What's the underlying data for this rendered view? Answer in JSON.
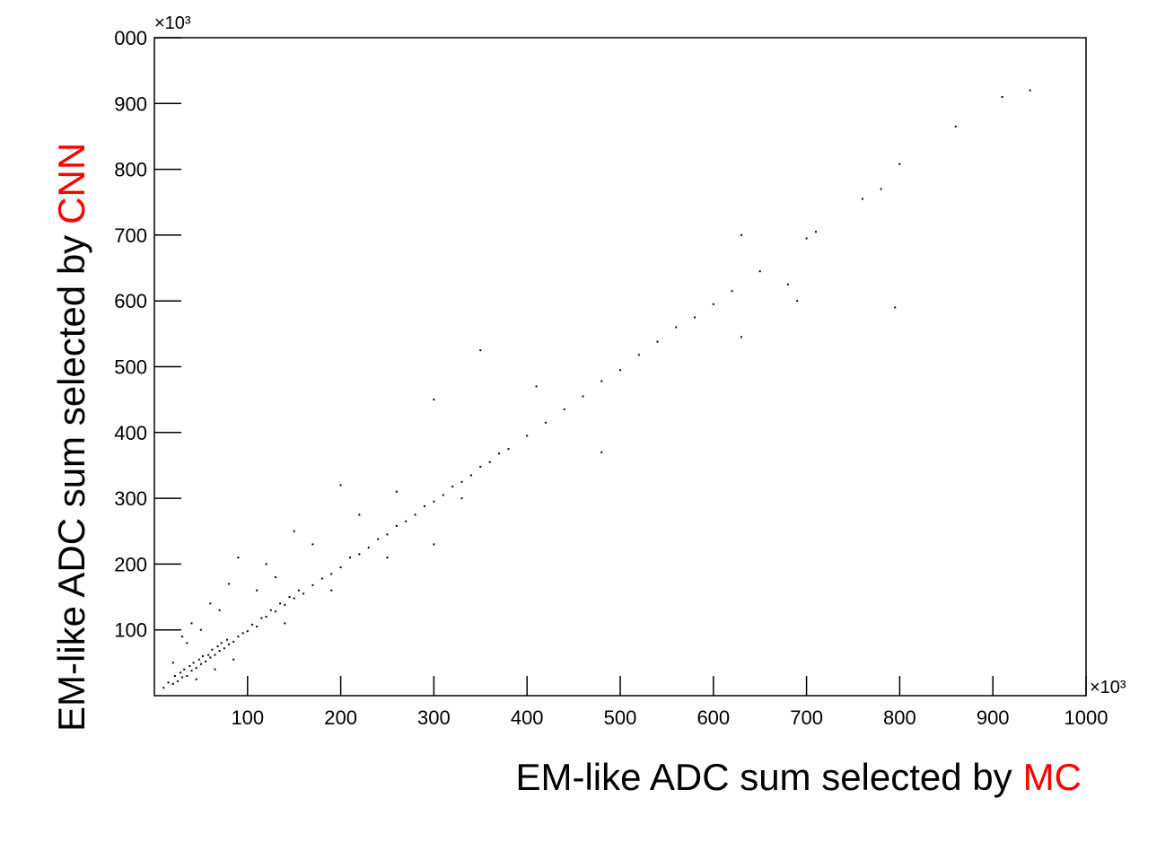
{
  "chart_data": {
    "type": "scatter",
    "x_label": "EM-like ADC sum selected by",
    "x_label_highlight": "MC",
    "y_label": "EM-like ADC sum selected by",
    "y_label_highlight": "CNN",
    "highlight_color": "#ff0000",
    "x_multiplier": "×10³",
    "y_multiplier": "×10³",
    "xlim": [
      0,
      1000
    ],
    "ylim": [
      0,
      1000
    ],
    "xticks": [
      100,
      200,
      300,
      400,
      500,
      600,
      700,
      800,
      900,
      1000
    ],
    "yticks": [
      100,
      200,
      300,
      400,
      500,
      600,
      700,
      800,
      900,
      {
        "value": 1000,
        "label": "000"
      }
    ],
    "grid": false,
    "series": [
      {
        "color": "#000000",
        "x": [
          10,
          15,
          20,
          22,
          25,
          28,
          30,
          32,
          35,
          38,
          40,
          42,
          45,
          48,
          50,
          52,
          55,
          58,
          60,
          62,
          65,
          68,
          70,
          72,
          75,
          78,
          80,
          85,
          90,
          95,
          100,
          105,
          110,
          115,
          120,
          125,
          130,
          135,
          140,
          145,
          150,
          155,
          160,
          170,
          180,
          190,
          200,
          210,
          220,
          230,
          240,
          250,
          260,
          270,
          280,
          290,
          300,
          310,
          320,
          330,
          340,
          350,
          360,
          370,
          380,
          400,
          420,
          440,
          460,
          480,
          500,
          520,
          540,
          560,
          580,
          600,
          620,
          650,
          700,
          710,
          760,
          780,
          800,
          860,
          910,
          940,
          30,
          40,
          60,
          80,
          90,
          120,
          150,
          200,
          300,
          350,
          410,
          630,
          690,
          795,
          630,
          480,
          300,
          680,
          250,
          330,
          20,
          35,
          50,
          70,
          110,
          130,
          170,
          220,
          260,
          45,
          65,
          85,
          140,
          190
        ],
        "y": [
          12,
          20,
          18,
          30,
          22,
          35,
          28,
          40,
          30,
          45,
          38,
          50,
          42,
          55,
          48,
          60,
          52,
          62,
          58,
          70,
          62,
          75,
          68,
          80,
          72,
          85,
          78,
          82,
          90,
          95,
          98,
          108,
          105,
          118,
          120,
          130,
          128,
          140,
          138,
          150,
          148,
          160,
          155,
          168,
          178,
          185,
          195,
          210,
          215,
          225,
          238,
          245,
          258,
          265,
          275,
          288,
          295,
          305,
          318,
          325,
          335,
          348,
          355,
          368,
          375,
          395,
          415,
          435,
          455,
          478,
          495,
          518,
          538,
          560,
          575,
          595,
          615,
          645,
          695,
          705,
          755,
          770,
          808,
          865,
          910,
          920,
          90,
          110,
          140,
          170,
          210,
          200,
          250,
          320,
          450,
          525,
          470,
          700,
          600,
          590,
          545,
          370,
          230,
          625,
          210,
          300,
          50,
          80,
          100,
          130,
          160,
          180,
          230,
          275,
          310,
          25,
          40,
          55,
          110,
          160
        ]
      }
    ]
  }
}
